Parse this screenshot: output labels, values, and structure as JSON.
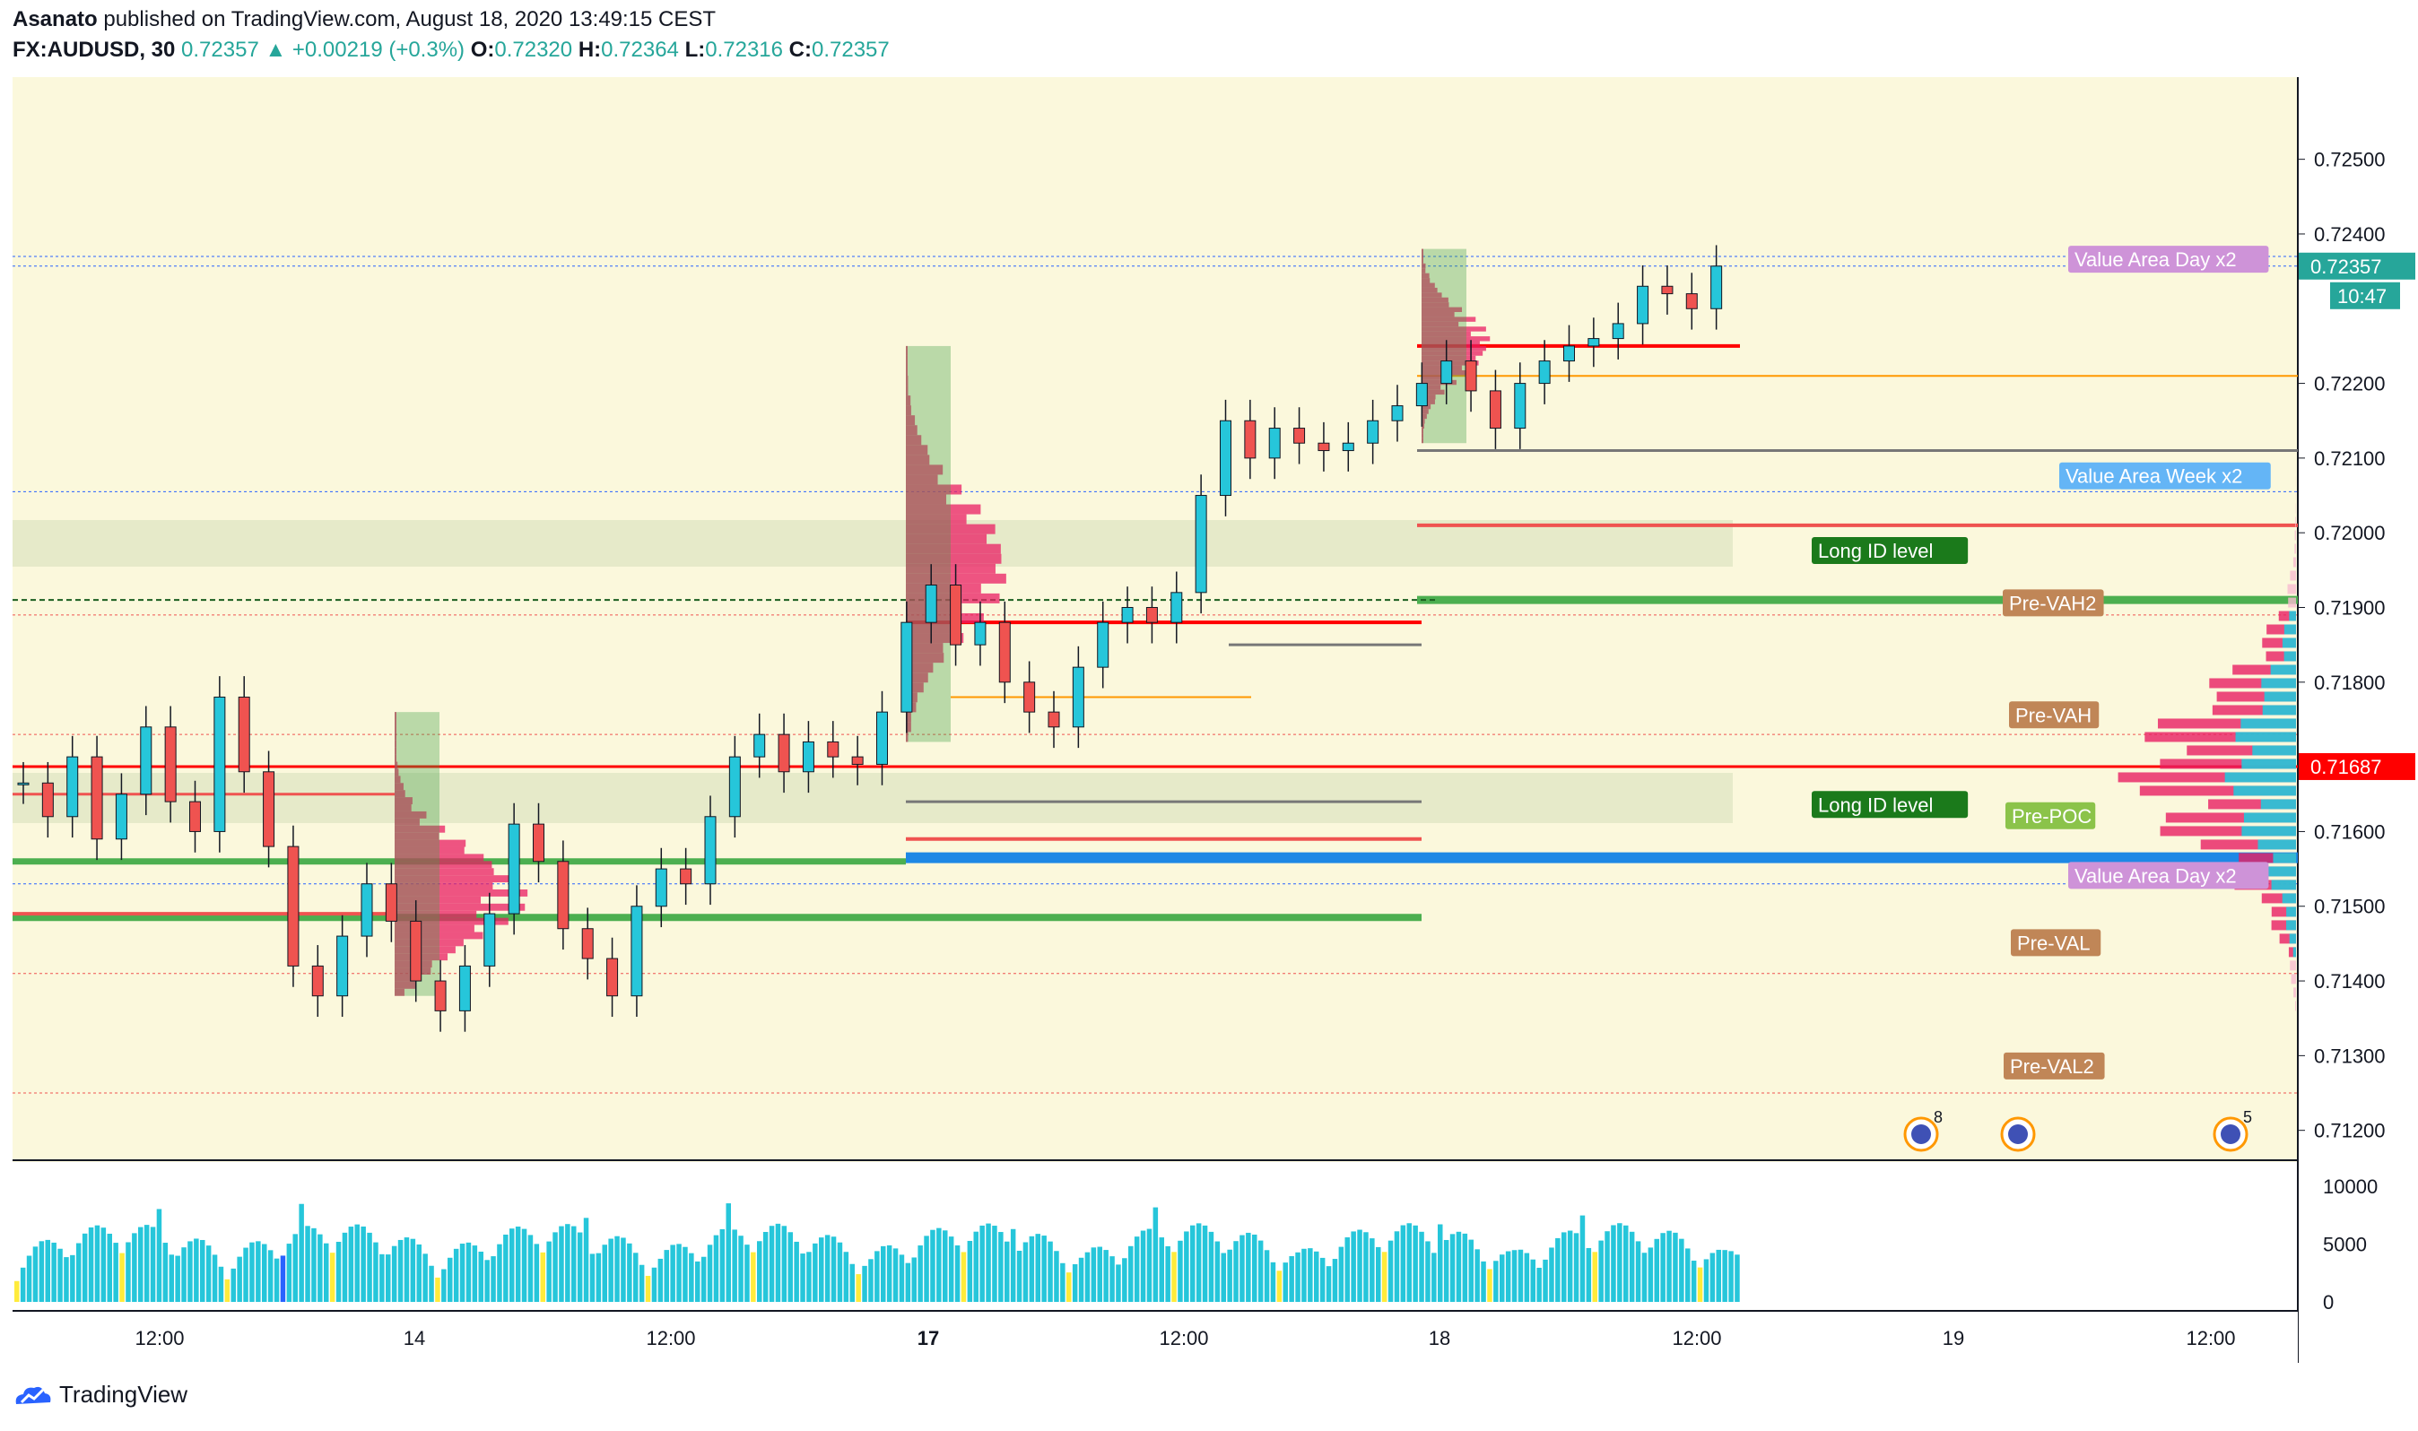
{
  "header": {
    "publisher": "Asanato",
    "published_text": "published on TradingView.com, August 18, 2020 13:49:15 CEST",
    "symbol": "FX:AUDUSD, 30",
    "last": "0.72357",
    "change": "▲ +0.00219 (+0.3%)",
    "o_label": "O:",
    "o": "0.72320",
    "h_label": "H:",
    "h": "0.72364",
    "l_label": "L:",
    "l": "0.72316",
    "c_label": "C:",
    "c": "0.72357"
  },
  "footer": {
    "brand": "TradingView"
  },
  "colors": {
    "background": "#fbf8dc",
    "up": "#26c6da",
    "down": "#ef5350",
    "volume": "#26c6da",
    "volume_highlight": "#ffeb3b",
    "volume_special": "#2962ff",
    "vwap_box": "#e3e8c6"
  },
  "chart_data": {
    "type": "candlestick",
    "symbol": "FX:AUDUSD",
    "interval": "30",
    "x_tick_labels": [
      "12:00",
      "14",
      "12:00",
      "17",
      "12:00",
      "18",
      "12:00",
      "19",
      "12:00"
    ],
    "y_tick_labels": [
      "0.72500",
      "0.72400",
      "0.72200",
      "0.72100",
      "0.72000",
      "0.71900",
      "0.71800",
      "0.71600",
      "0.71500",
      "0.71400",
      "0.71300",
      "0.71200"
    ],
    "ylim": [
      0.7116,
      0.7261
    ],
    "volume_tick_labels": [
      "10000",
      "5000",
      "0"
    ],
    "volume_ylim": [
      0,
      11000
    ],
    "price_label": "0.72357",
    "countdown_label": "10:47",
    "red_level_label": "0.71687",
    "price_path": [
      0.71665,
      0.7162,
      0.717,
      0.7159,
      0.7165,
      0.7174,
      0.7164,
      0.716,
      0.7178,
      0.7168,
      0.7158,
      0.7142,
      0.7138,
      0.7146,
      0.7153,
      0.7148,
      0.714,
      0.7136,
      0.7142,
      0.7149,
      0.7161,
      0.7156,
      0.7147,
      0.7143,
      0.7138,
      0.715,
      0.7155,
      0.7153,
      0.7162,
      0.717,
      0.7173,
      0.7168,
      0.7172,
      0.717,
      0.7169,
      0.7176,
      0.7188,
      0.7193,
      0.7185,
      0.7188,
      0.718,
      0.7176,
      0.7174,
      0.7182,
      0.7188,
      0.719,
      0.7188,
      0.7192,
      0.7205,
      0.7215,
      0.721,
      0.7214,
      0.7212,
      0.7211,
      0.7212,
      0.7215,
      0.7217,
      0.722,
      0.7223,
      0.7219,
      0.7214,
      0.722,
      0.7223,
      0.7225,
      0.7226,
      0.7228,
      0.7233,
      0.7232,
      0.723,
      0.72357
    ],
    "profile_levels": [
      "Value Area Day x2",
      "Value Area Week x2",
      "Pre-VAH2",
      "Pre-VAH",
      "Pre-POC",
      "Value Area Day x2",
      "Pre-VAL",
      "Pre-VAL2"
    ],
    "long_id_labels": [
      "Long ID level",
      "Long ID level"
    ],
    "event_icon_counts": [
      "8",
      "5"
    ]
  }
}
